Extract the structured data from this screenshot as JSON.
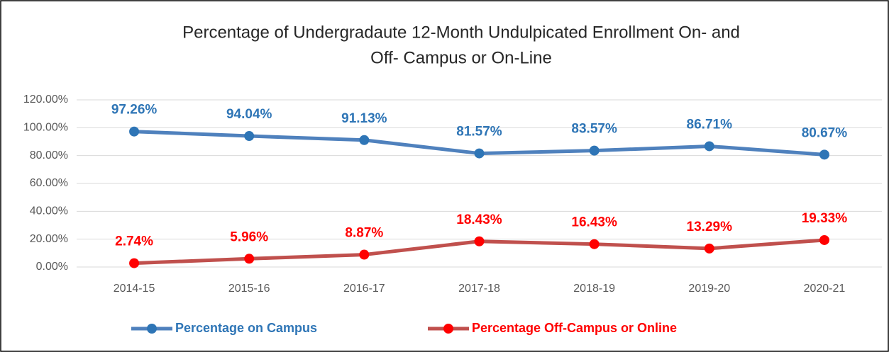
{
  "chart_data": {
    "type": "line",
    "title": [
      "Percentage of Undergradaute 12-Month Undulpicated Enrollment On- and",
      "Off- Campus or On-Line"
    ],
    "categories": [
      "2014-15",
      "2015-16",
      "2016-17",
      "2017-18",
      "2018-19",
      "2019-20",
      "2020-21"
    ],
    "series": [
      {
        "name": "Percentage on Campus",
        "color": "#2e75b6",
        "line_color": "#4f81bd",
        "values": [
          97.26,
          94.04,
          91.13,
          81.57,
          83.57,
          86.71,
          80.67
        ],
        "value_labels": [
          "97.26%",
          "94.04%",
          "91.13%",
          "81.57%",
          "83.57%",
          "86.71%",
          "80.67%"
        ]
      },
      {
        "name": "Percentage Off-Campus or Online",
        "color": "#ff0000",
        "line_color": "#c0504d",
        "values": [
          2.74,
          5.96,
          8.87,
          18.43,
          16.43,
          13.29,
          19.33
        ],
        "value_labels": [
          "2.74%",
          "5.96%",
          "8.87%",
          "18.43%",
          "16.43%",
          "13.29%",
          "19.33%"
        ]
      }
    ],
    "ylim": [
      0,
      120
    ],
    "yticks": [
      {
        "value": 0,
        "label": "0.00%"
      },
      {
        "value": 20,
        "label": "20.00%"
      },
      {
        "value": 40,
        "label": "40.00%"
      },
      {
        "value": 60,
        "label": "60.00%"
      },
      {
        "value": 80,
        "label": "80.00%"
      },
      {
        "value": 100,
        "label": "100.00%"
      },
      {
        "value": 120,
        "label": "120.00%"
      }
    ],
    "grid": true,
    "legend": "bottom"
  }
}
